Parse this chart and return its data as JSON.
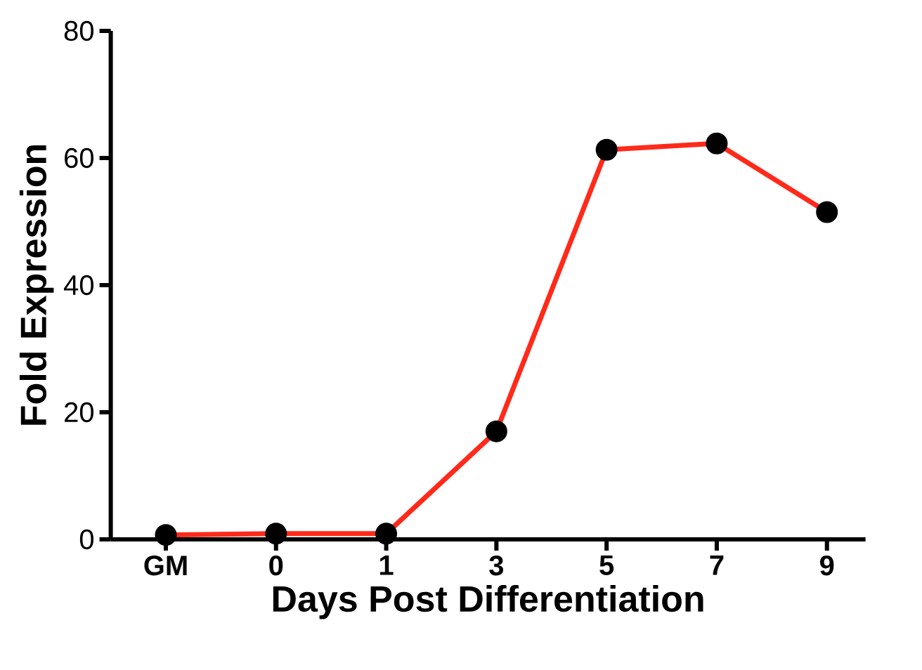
{
  "chart_data": {
    "type": "line",
    "xlabel": "Days Post Differentiation",
    "ylabel": "Fold Expression",
    "categories": [
      "GM",
      "0",
      "1",
      "3",
      "5",
      "7",
      "9"
    ],
    "series": [
      {
        "color": "#ff2a1a",
        "values": [
          0.7,
          0.9,
          0.9,
          17,
          61.3,
          62.3,
          51.5
        ]
      }
    ],
    "ylim": [
      0,
      80
    ],
    "yticks": [
      0,
      20,
      40,
      60,
      80
    ],
    "grid": false,
    "marker": "circle",
    "line_style": "solid"
  }
}
